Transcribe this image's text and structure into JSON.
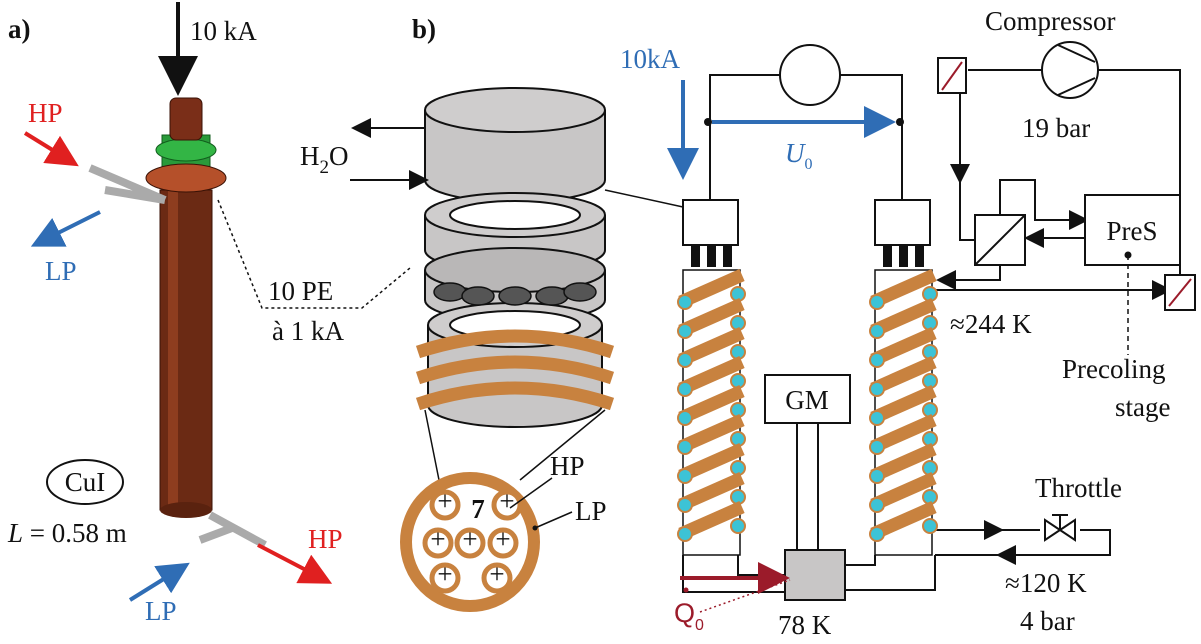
{
  "panel_a": {
    "label": "a)",
    "current": "10 kA",
    "hp_in": "HP",
    "lp_out": "LP",
    "pe_line1": "10 PE",
    "pe_line2": "à 1 kA",
    "material": "CuI",
    "length_symbol": "L",
    "length_value": "= 0.58 m",
    "hp_out": "HP",
    "lp_in": "LP"
  },
  "panel_b": {
    "label": "b)",
    "water": {
      "main": "H",
      "sub": "2",
      "tail": "O"
    },
    "current": "10kA",
    "voltage": {
      "symbol": "U",
      "sub": "0"
    },
    "compressor": "Compressor",
    "pressure_high": "19 bar",
    "pres": "PreS",
    "temp_warm": "≈244 K",
    "precooling": [
      "Precoling",
      "stage"
    ],
    "gm": "GM",
    "cross_section": {
      "hp": "HP",
      "count": "7",
      "lp": "LP"
    },
    "throttle": "Throttle",
    "temp_cold": "≈120 K",
    "pressure_low": "4 bar",
    "heat": {
      "symbol": "Q",
      "sub": "0"
    },
    "temp_cryo": "78 K"
  }
}
